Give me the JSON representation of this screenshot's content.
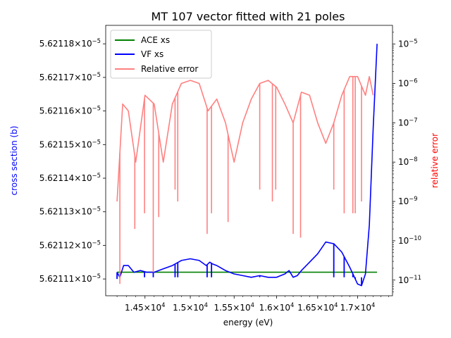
{
  "chart_data": {
    "type": "line",
    "title": "MT 107 vector fitted with 21 poles",
    "xlabel": "energy (eV)",
    "ylabel_left": "cross section (b)",
    "ylabel_right": "relative error",
    "xscale": "log",
    "yscale_left": "linear",
    "yscale_right": "log",
    "xlim": [
      14080,
      17450
    ],
    "ylim_left": [
      5.621105e-05,
      5.6211855e-05
    ],
    "ylim_right": [
      4e-12,
      3e-05
    ],
    "x_ticks": [
      {
        "value": 14500,
        "label_main": "1.45×10",
        "label_sup": "4"
      },
      {
        "value": 15000,
        "label_main": "1.5×10",
        "label_sup": "4"
      },
      {
        "value": 15500,
        "label_main": "1.55×10",
        "label_sup": "4"
      },
      {
        "value": 16000,
        "label_main": "1.6×10",
        "label_sup": "4"
      },
      {
        "value": 16500,
        "label_main": "1.65×10",
        "label_sup": "4"
      },
      {
        "value": 17000,
        "label_main": "1.7×10",
        "label_sup": "4"
      }
    ],
    "y_left_ticks": [
      {
        "value": 5.62111e-05,
        "label_main": "5.62111×10",
        "label_sup": "−5"
      },
      {
        "value": 5.62112e-05,
        "label_main": "5.62112×10",
        "label_sup": "−5"
      },
      {
        "value": 5.62113e-05,
        "label_main": "5.62113×10",
        "label_sup": "−5"
      },
      {
        "value": 5.62114e-05,
        "label_main": "5.62114×10",
        "label_sup": "−5"
      },
      {
        "value": 5.62115e-05,
        "label_main": "5.62115×10",
        "label_sup": "−5"
      },
      {
        "value": 5.62116e-05,
        "label_main": "5.62116×10",
        "label_sup": "−5"
      },
      {
        "value": 5.62117e-05,
        "label_main": "5.62117×10",
        "label_sup": "−5"
      },
      {
        "value": 5.62118e-05,
        "label_main": "5.62118×10",
        "label_sup": "−5"
      }
    ],
    "y_right_ticks": [
      {
        "value": 1e-11,
        "label_main": "10",
        "label_sup": "−11"
      },
      {
        "value": 1e-10,
        "label_main": "10",
        "label_sup": "−10"
      },
      {
        "value": 1e-09,
        "label_main": "10",
        "label_sup": "−9"
      },
      {
        "value": 1e-08,
        "label_main": "10",
        "label_sup": "−8"
      },
      {
        "value": 1e-07,
        "label_main": "10",
        "label_sup": "−7"
      },
      {
        "value": 1e-06,
        "label_main": "10",
        "label_sup": "−6"
      },
      {
        "value": 1e-05,
        "label_main": "10",
        "label_sup": "−5"
      }
    ],
    "legend": {
      "placement": "upper-left",
      "entries": [
        {
          "label": "ACE xs",
          "color": "#008000"
        },
        {
          "label": "VF xs",
          "color": "#0000ff"
        },
        {
          "label": "Relative error",
          "color": "#ff8080"
        }
      ]
    },
    "series": [
      {
        "name": "ACE xs",
        "axis": "left",
        "color": "#008000",
        "x": [
          14200,
          17250
        ],
        "y": [
          5.621112e-05,
          5.621112e-05
        ]
      },
      {
        "name": "VF xs",
        "axis": "left",
        "color": "#0000ff",
        "x": [
          14200,
          14230,
          14270,
          14320,
          14380,
          14450,
          14520,
          14600,
          14700,
          14800,
          14900,
          15000,
          15100,
          15180,
          15220,
          15250,
          15300,
          15400,
          15500,
          15600,
          15700,
          15800,
          15900,
          16000,
          16100,
          16150,
          16200,
          16250,
          16300,
          16400,
          16500,
          16600,
          16700,
          16800,
          16900,
          16950,
          17000,
          17050,
          17100,
          17150,
          17200,
          17250
        ],
        "y": [
          5.621112e-05,
          5.6211105e-05,
          5.621114e-05,
          5.621114e-05,
          5.621112e-05,
          5.6211125e-05,
          5.621112e-05,
          5.621112e-05,
          5.621113e-05,
          5.621114e-05,
          5.6211155e-05,
          5.621116e-05,
          5.6211155e-05,
          5.621114e-05,
          5.621115e-05,
          5.6211145e-05,
          5.621114e-05,
          5.6211125e-05,
          5.6211115e-05,
          5.621111e-05,
          5.6211105e-05,
          5.621111e-05,
          5.6211105e-05,
          5.6211105e-05,
          5.6211115e-05,
          5.6211125e-05,
          5.6211105e-05,
          5.621111e-05,
          5.6211125e-05,
          5.621115e-05,
          5.6211175e-05,
          5.621121e-05,
          5.6211205e-05,
          5.621118e-05,
          5.6211135e-05,
          5.621111e-05,
          5.6211085e-05,
          5.621108e-05,
          5.6211115e-05,
          5.621126e-05,
          5.621155e-05,
          5.62118e-05
        ]
      },
      {
        "name": "Relative error",
        "axis": "right",
        "color": "#ff8080",
        "x": [
          14200,
          14260,
          14320,
          14400,
          14500,
          14600,
          14700,
          14800,
          14900,
          15000,
          15100,
          15200,
          15300,
          15400,
          15500,
          15600,
          15700,
          15800,
          15900,
          16000,
          16100,
          16200,
          16300,
          16400,
          16500,
          16600,
          16700,
          16800,
          16900,
          17000,
          17100,
          17150,
          17200
        ],
        "y": [
          1e-09,
          3e-07,
          2e-07,
          1e-08,
          5e-07,
          3e-07,
          1e-08,
          3e-07,
          1e-06,
          1.2e-06,
          1e-06,
          2e-07,
          4e-07,
          1e-07,
          1e-08,
          1e-07,
          4e-07,
          1e-06,
          1.2e-06,
          8e-07,
          3e-07,
          1e-07,
          6e-07,
          5e-07,
          1e-07,
          3e-08,
          1e-07,
          5e-07,
          1.5e-06,
          1.5e-06,
          5e-07,
          1.5e-06,
          5e-07
        ]
      }
    ],
    "spikes": [
      {
        "x": 14200,
        "series": [
          "VF xs",
          "Relative error"
        ],
        "vf_dip": 5.62111e-05,
        "err_low": 1e-09
      },
      {
        "x": 14230,
        "series": [
          "Relative error"
        ],
        "err_low": 8e-12
      },
      {
        "x": 14390,
        "series": [
          "Relative error"
        ],
        "err_low": 2e-10
      },
      {
        "x": 14495,
        "series": [
          "VF xs",
          "Relative error"
        ],
        "vf_dip": 5.6211105e-05,
        "err_low": 5e-10
      },
      {
        "x": 14590,
        "series": [
          "VF xs",
          "Relative error"
        ],
        "vf_dip": 5.6211105e-05,
        "err_low": 1.5e-11
      },
      {
        "x": 14650,
        "series": [
          "Relative error"
        ],
        "err_low": 4e-10
      },
      {
        "x": 14830,
        "series": [
          "VF xs",
          "Relative error"
        ],
        "vf_dip": 5.6211105e-05,
        "err_low": 2e-09
      },
      {
        "x": 14860,
        "series": [
          "VF xs",
          "Relative error"
        ],
        "vf_dip": 5.6211105e-05,
        "err_low": 1e-09
      },
      {
        "x": 15190,
        "series": [
          "VF xs",
          "Relative error"
        ],
        "vf_dip": 5.6211105e-05,
        "err_low": 1.5e-10
      },
      {
        "x": 15240,
        "series": [
          "VF xs",
          "Relative error"
        ],
        "vf_dip": 5.6211105e-05,
        "err_low": 5e-10
      },
      {
        "x": 15430,
        "series": [
          "Relative error"
        ],
        "err_low": 3e-10
      },
      {
        "x": 15800,
        "series": [
          "VF xs",
          "Relative error"
        ],
        "vf_dip": 5.6211105e-05,
        "err_low": 2e-09
      },
      {
        "x": 15950,
        "series": [
          "VF xs",
          "Relative error"
        ],
        "vf_dip": 5.6211105e-05,
        "err_low": 1e-09
      },
      {
        "x": 15990,
        "series": [
          "VF xs",
          "Relative error"
        ],
        "vf_dip": 5.6211105e-05,
        "err_low": 2e-09
      },
      {
        "x": 16200,
        "series": [
          "VF xs",
          "Relative error"
        ],
        "vf_dip": 5.6211105e-05,
        "err_low": 1.5e-10
      },
      {
        "x": 16290,
        "series": [
          "Relative error"
        ],
        "err_low": 1.2e-10
      },
      {
        "x": 16700,
        "series": [
          "VF xs",
          "Relative error"
        ],
        "vf_dip": 5.6211105e-05,
        "err_low": 2e-09
      },
      {
        "x": 16830,
        "series": [
          "VF xs",
          "Relative error"
        ],
        "vf_dip": 5.6211105e-05,
        "err_low": 5e-10
      },
      {
        "x": 16940,
        "series": [
          "VF xs",
          "Relative error"
        ],
        "vf_dip": 5.6211105e-05,
        "err_low": 5e-10
      },
      {
        "x": 16970,
        "series": [
          "VF xs",
          "Relative error"
        ],
        "vf_dip": 5.6211105e-05,
        "err_low": 5e-10
      },
      {
        "x": 17050,
        "series": [
          "VF xs",
          "Relative error"
        ],
        "vf_dip": 5.6211105e-05,
        "err_low": 1e-09
      }
    ]
  }
}
